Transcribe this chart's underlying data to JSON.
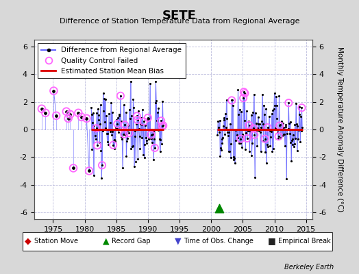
{
  "title": "SETE",
  "subtitle": "Difference of Station Temperature Data from Regional Average",
  "ylabel": "Monthly Temperature Anomaly Difference (°C)",
  "xlabel_years": [
    1975,
    1980,
    1985,
    1990,
    1995,
    2000,
    2005,
    2010,
    2015
  ],
  "ylim": [
    -6.5,
    6.5
  ],
  "xlim": [
    1972.0,
    2016.0
  ],
  "yticks": [
    -6,
    -4,
    -2,
    0,
    2,
    4,
    6
  ],
  "background_color": "#d8d8d8",
  "plot_bg_color": "#ffffff",
  "line_color": "#6666ff",
  "bias_color": "#dd0000",
  "qc_color": "#ff66ff",
  "station_move_color": "#cc0000",
  "record_gap_color": "#008800",
  "time_obs_color": "#4444cc",
  "empirical_break_color": "#222222",
  "watermark": "Berkeley Earth",
  "segment1_start": 1981.0,
  "segment1_end": 1992.5,
  "segment2_start": 2001.0,
  "segment2_end": 2014.5,
  "early_start": 1973.0,
  "early_end": 1981.0,
  "bias_y": 0.0,
  "record_gap_x": 2001.3,
  "record_gap_y": -5.7
}
